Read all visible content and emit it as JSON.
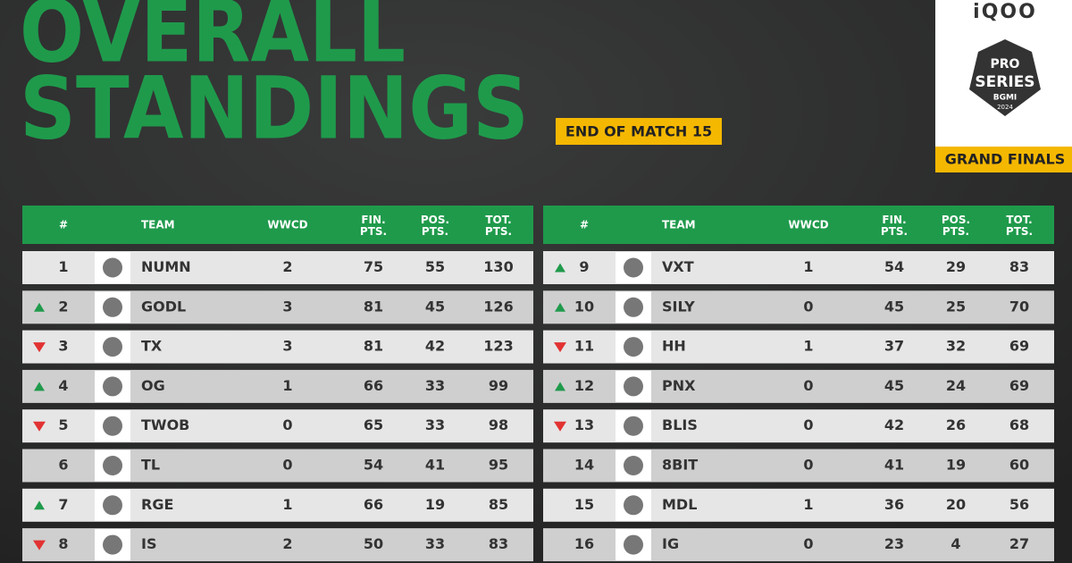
{
  "header": {
    "title_lines": [
      "OVERALL",
      "STANDINGS"
    ],
    "badge": "END OF MATCH 15",
    "sponsor": "iQOO",
    "logo_lines": [
      "PRO",
      "SERIES",
      "BGMI",
      "2024"
    ],
    "stage": "GRAND FINALS"
  },
  "columns": [
    "#",
    "TEAM",
    "WWCD",
    "FIN. PTS.",
    "POS. PTS.",
    "TOT. PTS."
  ],
  "tables": [
    {
      "rows": [
        {
          "rank": 1,
          "team": "NUMN",
          "wwcd": 2,
          "fin": 75,
          "pos": 55,
          "tot": 130
        },
        {
          "rank": 2,
          "trend": "up",
          "team": "GODL",
          "wwcd": 3,
          "fin": 81,
          "pos": 45,
          "tot": 126
        },
        {
          "rank": 3,
          "trend": "down",
          "team": "TX",
          "wwcd": 3,
          "fin": 81,
          "pos": 42,
          "tot": 123
        },
        {
          "rank": 4,
          "trend": "up",
          "team": "OG",
          "wwcd": 1,
          "fin": 66,
          "pos": 33,
          "tot": 99
        },
        {
          "rank": 5,
          "trend": "down",
          "team": "TWOB",
          "wwcd": 0,
          "fin": 65,
          "pos": 33,
          "tot": 98
        },
        {
          "rank": 6,
          "team": "TL",
          "wwcd": 0,
          "fin": 54,
          "pos": 41,
          "tot": 95
        },
        {
          "rank": 7,
          "trend": "up",
          "team": "RGE",
          "wwcd": 1,
          "fin": 66,
          "pos": 19,
          "tot": 85
        },
        {
          "rank": 8,
          "trend": "down",
          "team": "IS",
          "wwcd": 2,
          "fin": 50,
          "pos": 33,
          "tot": 83
        }
      ]
    },
    {
      "rows": [
        {
          "rank": 9,
          "trend": "up",
          "team": "VXT",
          "wwcd": 1,
          "fin": 54,
          "pos": 29,
          "tot": 83
        },
        {
          "rank": 10,
          "trend": "up",
          "team": "SILY",
          "wwcd": 0,
          "fin": 45,
          "pos": 25,
          "tot": 70
        },
        {
          "rank": 11,
          "trend": "down",
          "team": "HH",
          "wwcd": 1,
          "fin": 37,
          "pos": 32,
          "tot": 69
        },
        {
          "rank": 12,
          "trend": "up",
          "team": "PNX",
          "wwcd": 0,
          "fin": 45,
          "pos": 24,
          "tot": 69
        },
        {
          "rank": 13,
          "trend": "down",
          "team": "BLIS",
          "wwcd": 0,
          "fin": 42,
          "pos": 26,
          "tot": 68
        },
        {
          "rank": 14,
          "team": "8BIT",
          "wwcd": 0,
          "fin": 41,
          "pos": 19,
          "tot": 60
        },
        {
          "rank": 15,
          "team": "MDL",
          "wwcd": 1,
          "fin": 36,
          "pos": 20,
          "tot": 56
        },
        {
          "rank": 16,
          "team": "IG",
          "wwcd": 0,
          "fin": 23,
          "pos": 4,
          "tot": 27
        }
      ]
    }
  ]
}
